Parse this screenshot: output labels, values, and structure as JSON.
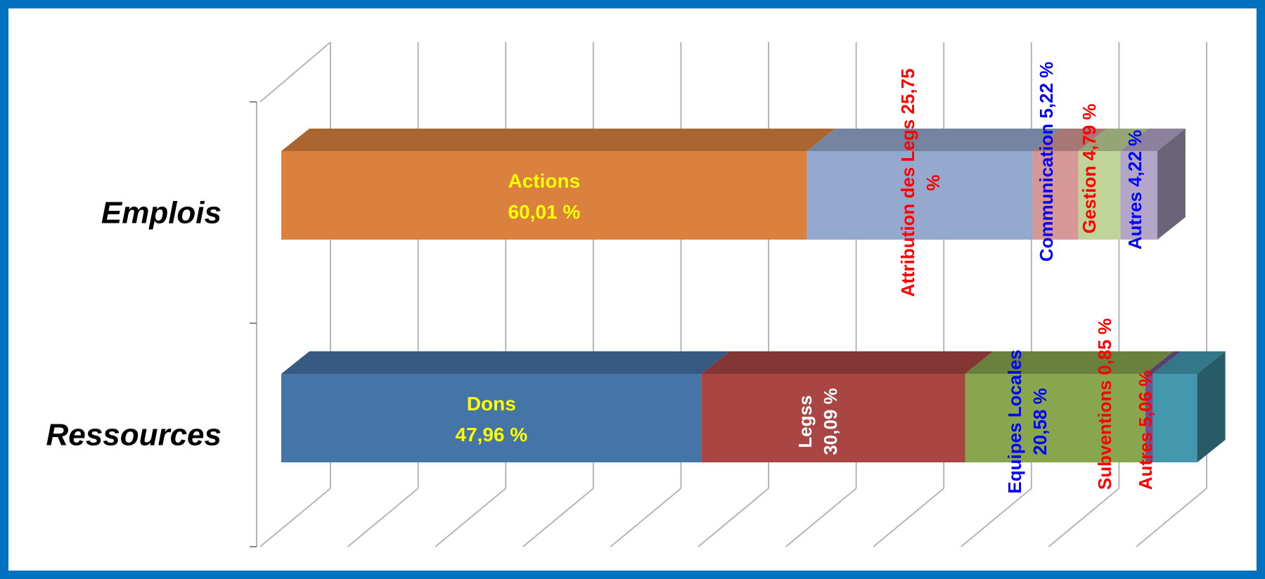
{
  "chart_data": {
    "type": "bar",
    "stacked": true,
    "percent": true,
    "three_d": true,
    "grid": true,
    "categories": [
      "Emplois",
      "Ressources"
    ],
    "xlim": [
      0,
      100
    ],
    "rows": [
      {
        "category": "Emplois",
        "segments": [
          {
            "label": "Actions",
            "value": 60.01,
            "value_text": "60,01 %",
            "color": "#DA813F",
            "label_color": "#FFFF00",
            "label_orientation": "horizontal",
            "text": "Actions"
          },
          {
            "label": "Attribution des Legs",
            "value": 25.75,
            "value_text": "25,75 %",
            "color": "#95A9CF",
            "label_color": "#FF0000",
            "label_orientation": "vertical",
            "text": "Attribution des Legs 25,75 %"
          },
          {
            "label": "Communication",
            "value": 5.22,
            "value_text": "5,22 %",
            "color": "#D59896",
            "label_color": "#0000FF",
            "label_orientation": "vertical",
            "text": "Communication  5,22 %"
          },
          {
            "label": "Gestion",
            "value": 4.79,
            "value_text": "4,79 %",
            "color": "#C0D49A",
            "label_color": "#FF0000",
            "label_orientation": "vertical",
            "text": "Gestion  4,79 %"
          },
          {
            "label": "Autres",
            "value": 4.22,
            "value_text": "4,22 %",
            "color": "#B3A6C9",
            "label_color": "#0000FF",
            "label_orientation": "vertical",
            "text": "Autres 4,22 %"
          }
        ]
      },
      {
        "category": "Ressources",
        "segments": [
          {
            "label": "Dons",
            "value": 47.96,
            "value_text": "47,96 %",
            "color": "#4574A6",
            "label_color": "#FFFF00",
            "label_orientation": "horizontal",
            "text": "Dons"
          },
          {
            "label": "Legss",
            "value": 30.09,
            "value_text": "30,09 %",
            "color": "#A94543",
            "label_color": "#FFFFFF",
            "label_orientation": "vertical",
            "text": "Legss"
          },
          {
            "label": "Equipes Locales",
            "value": 20.58,
            "value_text": "20,58 %",
            "color": "#88A64E",
            "label_color": "#0000FF",
            "label_orientation": "vertical",
            "text": "Equipes Locales"
          },
          {
            "label": "Subventions",
            "value": 0.85,
            "value_text": "0,85 %",
            "color": "#6A5492",
            "label_color": "#FF0000",
            "label_orientation": "vertical",
            "text": "Subventions 0,85 %"
          },
          {
            "label": "Autres",
            "value": 5.06,
            "value_text": "5,06 %",
            "color": "#4398AE",
            "label_color": "#FF0000",
            "label_orientation": "vertical",
            "text": "Autres  5,06 %"
          }
        ]
      }
    ],
    "frame_color": "#0070C0"
  }
}
